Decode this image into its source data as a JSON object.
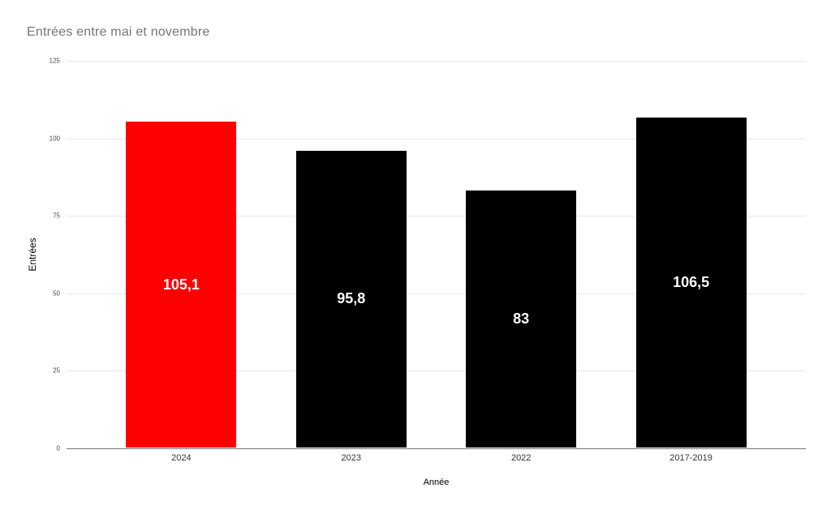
{
  "chart_data": {
    "type": "bar",
    "title": "Entrées entre mai et novembre",
    "xlabel": "Année",
    "ylabel": "Entrées",
    "categories": [
      "2024",
      "2023",
      "2022",
      "2017-2019"
    ],
    "values": [
      105.1,
      95.8,
      83,
      106.5
    ],
    "value_labels": [
      "105,1",
      "95,8",
      "83",
      "106,5"
    ],
    "bar_colors": [
      "#ff0000",
      "#000000",
      "#000000",
      "#000000"
    ],
    "value_label_color": "#ffffff",
    "ylim": [
      0,
      125
    ],
    "yticks": [
      0,
      25,
      50,
      75,
      100,
      125
    ],
    "grid": true,
    "legend": "none",
    "background_color": "#ffffff",
    "title_color": "#757575",
    "gridline_color": "#e6e6e6",
    "axis_line_color": "#757575"
  }
}
